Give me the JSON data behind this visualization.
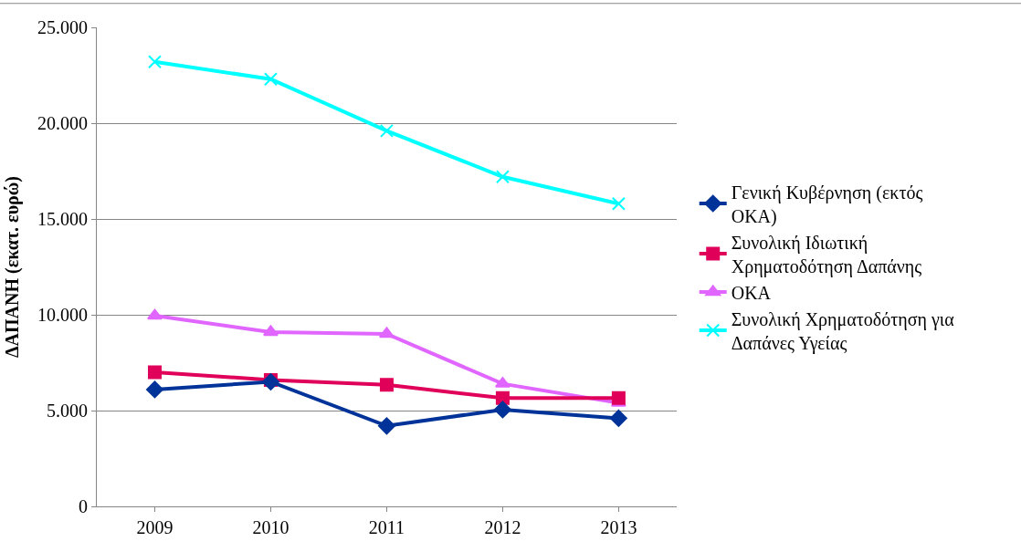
{
  "chart_data": {
    "type": "line",
    "ylabel": "ΔΑΠΑΝΗ (εκατ. ευρώ)",
    "categories": [
      "2009",
      "2010",
      "2011",
      "2012",
      "2013"
    ],
    "series": [
      {
        "name": "Γενική Κυβέρνηση (εκτός ΟΚΑ)",
        "color": "#003399",
        "marker": "diamond",
        "values": [
          6100,
          6500,
          4200,
          5050,
          4600
        ]
      },
      {
        "name": "Συνολική Ιδιωτική Χρηματοδότηση Δαπάνης",
        "color": "#e0005a",
        "marker": "square",
        "values": [
          7000,
          6600,
          6350,
          5650,
          5650
        ]
      },
      {
        "name": "ΟΚΑ",
        "color": "#e066ff",
        "marker": "triangle",
        "values": [
          9950,
          9100,
          9000,
          6400,
          5400
        ]
      },
      {
        "name": "Συνολική Χρηματοδότηση για Δαπάνες Υγείας",
        "color": "#00ffff",
        "marker": "cross",
        "values": [
          23200,
          22300,
          19600,
          17200,
          15800
        ]
      }
    ],
    "ylim": [
      0,
      25000
    ],
    "yticks": [
      0,
      {
        "value": 5000,
        "label": "5.000"
      },
      {
        "value": 10000,
        "label": "10.000"
      },
      {
        "value": 15000,
        "label": "15.000"
      },
      {
        "value": 20000,
        "label": "20.000"
      },
      {
        "value": 25000,
        "label": "25.000"
      }
    ],
    "grid": "y",
    "legend": "right"
  }
}
